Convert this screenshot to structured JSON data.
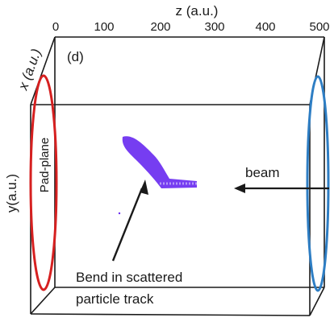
{
  "panel_label": "(d)",
  "z_axis": {
    "label": "z (a.u.)",
    "ticks": [
      "0",
      "100",
      "200",
      "300",
      "400",
      "500"
    ]
  },
  "x_axis_label": "x (a.u.)",
  "y_axis_label": "y(a.u.)",
  "pad_plane_label": "Pad-plane",
  "beam_label": "beam",
  "annotation": {
    "line1": "Bend in scattered",
    "line2": "particle track"
  },
  "colors": {
    "pad_plane_ring": "#d62020",
    "exit_ring": "#2e7ec4",
    "track": "#6a2cf0",
    "box": "#1a1a1a"
  }
}
